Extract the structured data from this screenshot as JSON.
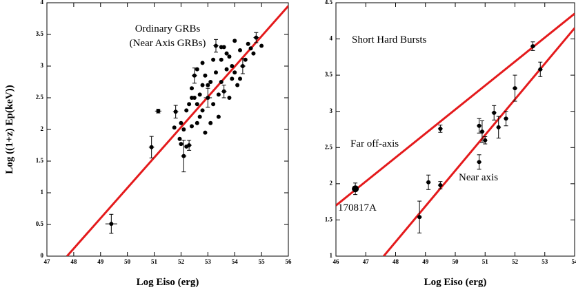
{
  "chart_data": [
    {
      "type": "scatter",
      "xlabel": "Log Eiso (erg)",
      "ylabel": "Log ((1+z) Ep(keV))",
      "annotations": [
        "Ordinary GRBs",
        "(Near Axis GRBs)"
      ],
      "xlim": [
        47,
        56
      ],
      "ylim": [
        0,
        4
      ],
      "xticks": [
        47,
        48,
        49,
        50,
        51,
        52,
        53,
        54,
        55,
        56
      ],
      "yticks": [
        0,
        0.5,
        1,
        1.5,
        2,
        2.5,
        3,
        3.5,
        4
      ],
      "series": [
        {
          "color": "#000000",
          "x": [
            49.4,
            50.9,
            52.1,
            51.15,
            53.3,
            54.8,
            52.5,
            53.0,
            53.6,
            52.3,
            54.3,
            51.8
          ],
          "values": [
            0.51,
            1.72,
            1.58,
            2.29,
            3.32,
            3.45,
            2.85,
            2.5,
            2.6,
            1.75,
            3.0,
            2.28
          ],
          "yerr": [
            0.15,
            0.17,
            0.25,
            0.03,
            0.1,
            0.08,
            0.12,
            0.15,
            0.1,
            0.08,
            0.12,
            0.1
          ],
          "xerr": [
            0.22,
            0.1,
            0.1,
            0.12,
            0.1,
            0.1,
            0.1,
            0.15,
            0.1,
            0.1,
            0.1,
            0.1
          ]
        },
        {
          "color": "#000000",
          "x": [
            51.75,
            52.0,
            52.2,
            51.95,
            52.4,
            52.6,
            52.8,
            53.2,
            53.5,
            53.7,
            54.0,
            54.2,
            54.5,
            54.6,
            55.0,
            53.9,
            53.5,
            52.8,
            52.6,
            52.4,
            53.2,
            54.0,
            53.1,
            52.9,
            52.7,
            53.4,
            53.8,
            54.1,
            52.2,
            52.0,
            52.5,
            53.3,
            53.7,
            53.0,
            52.4,
            53.5,
            54.4,
            54.7,
            52.9,
            53.6,
            52.7,
            53.1,
            54.2,
            53.9,
            52.3,
            52.1,
            53.4,
            53.8,
            52.6,
            52.8
          ],
          "values": [
            2.03,
            1.77,
            1.73,
            1.85,
            2.5,
            2.95,
            2.7,
            3.1,
            3.3,
            3.2,
            3.4,
            3.25,
            3.35,
            3.28,
            3.32,
            3.0,
            2.75,
            2.3,
            2.1,
            2.05,
            2.4,
            2.9,
            2.1,
            1.95,
            2.2,
            2.2,
            2.5,
            2.7,
            2.3,
            2.1,
            2.5,
            2.9,
            2.95,
            2.7,
            2.65,
            3.1,
            3.1,
            3.2,
            2.85,
            3.3,
            2.55,
            2.75,
            2.8,
            2.8,
            2.4,
            2.0,
            2.55,
            3.15,
            2.4,
            3.05
          ]
        }
      ],
      "fit_lines": [
        {
          "color": "#e41a1c",
          "x": [
            47.75,
            56
          ],
          "values": [
            0,
            3.95
          ]
        }
      ]
    },
    {
      "type": "scatter",
      "xlabel": "Log Eiso (erg)",
      "annotations": [
        "Short Hard Bursts",
        "Far off-axis",
        "Near axis",
        "170817A"
      ],
      "xlim": [
        46,
        54
      ],
      "ylim": [
        1,
        4.5
      ],
      "xticks": [
        46,
        47,
        48,
        49,
        50,
        51,
        52,
        53,
        54
      ],
      "yticks": [
        1,
        1.5,
        2,
        2.5,
        3,
        3.5,
        4,
        4.5
      ],
      "series": [
        {
          "color": "#000000",
          "x": [
            46.65,
            48.8,
            49.1,
            49.5,
            49.5,
            50.8,
            50.8,
            50.9,
            51.0,
            51.3,
            51.45,
            51.7,
            52.0,
            52.6,
            52.85
          ],
          "values": [
            1.93,
            1.54,
            2.02,
            1.98,
            2.76,
            2.3,
            2.8,
            2.72,
            2.6,
            2.98,
            2.78,
            2.9,
            3.32,
            3.9,
            3.58
          ],
          "yerr": [
            0.08,
            0.22,
            0.1,
            0.05,
            0.05,
            0.1,
            0.1,
            0.15,
            0.05,
            0.1,
            0.15,
            0.1,
            0.18,
            0.06,
            0.1
          ],
          "xerr": [
            0.1,
            0.08,
            0.08,
            0.08,
            0.08,
            0.08,
            0.08,
            0.08,
            0.08,
            0.08,
            0.08,
            0.08,
            0.08,
            0.08,
            0.08
          ]
        }
      ],
      "fit_lines": [
        {
          "color": "#e41a1c",
          "x": [
            46,
            54
          ],
          "values": [
            1.7,
            4.35
          ]
        },
        {
          "color": "#e41a1c",
          "x": [
            47.6,
            54
          ],
          "values": [
            1,
            4.15
          ]
        }
      ]
    }
  ]
}
